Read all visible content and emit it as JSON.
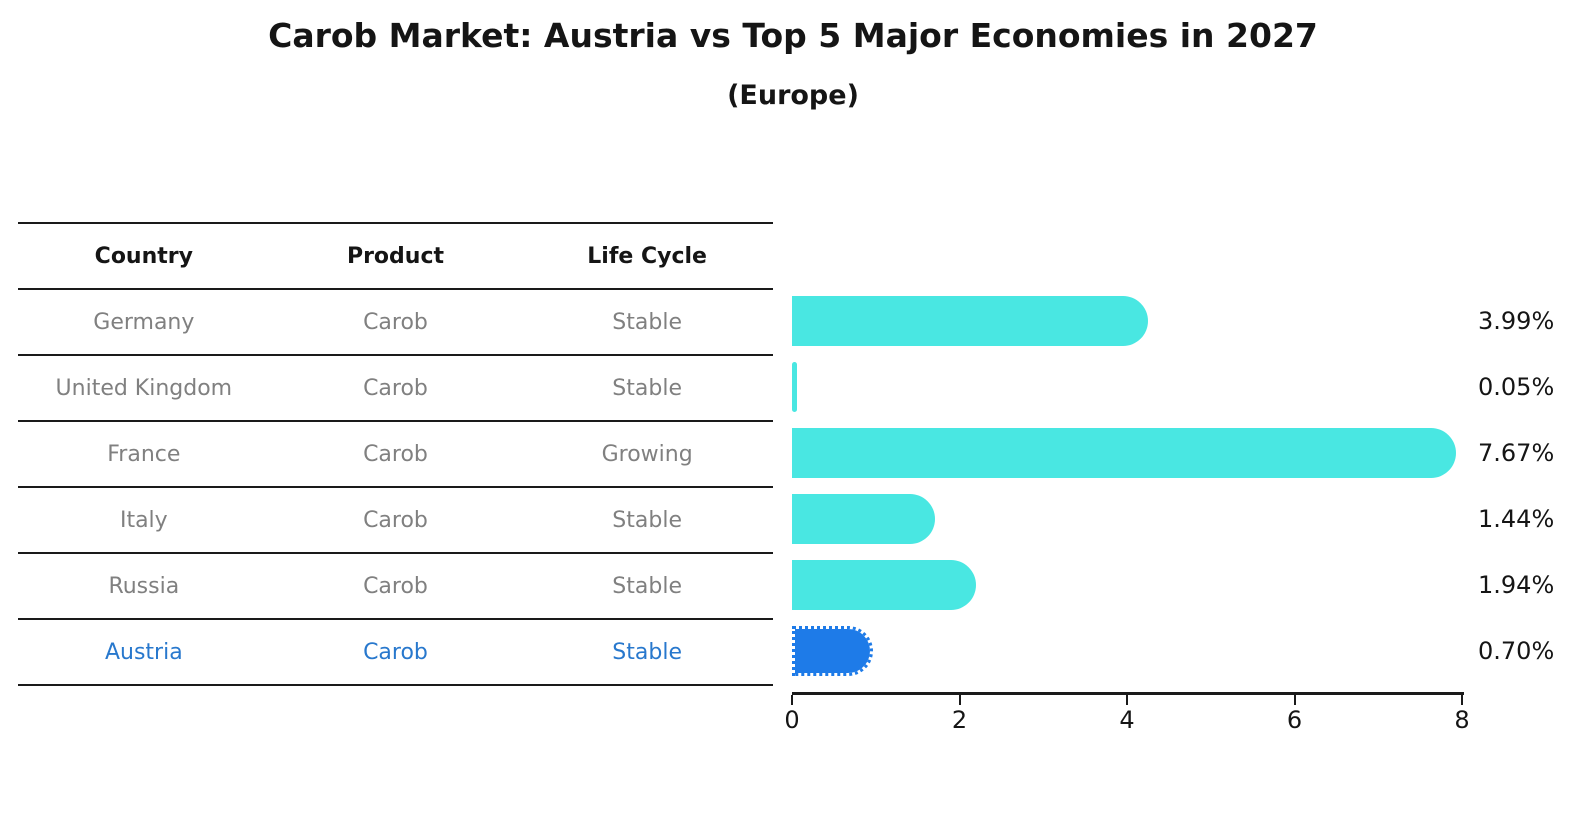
{
  "title": "Carob Market: Austria vs Top 5 Major Economies in 2027",
  "subtitle": "(Europe)",
  "table": {
    "headers": [
      "Country",
      "Product",
      "Life Cycle"
    ],
    "rows": [
      [
        "Germany",
        "Carob",
        "Stable"
      ],
      [
        "United Kingdom",
        "Carob",
        "Stable"
      ],
      [
        "France",
        "Carob",
        "Growing"
      ],
      [
        "Italy",
        "Carob",
        "Stable"
      ],
      [
        "Russia",
        "Carob",
        "Stable"
      ],
      [
        "Austria",
        "Carob",
        "Stable"
      ]
    ],
    "highlight_row_index": 5
  },
  "chart_data": {
    "type": "bar",
    "orientation": "horizontal",
    "categories": [
      "Germany",
      "United Kingdom",
      "France",
      "Italy",
      "Russia",
      "Austria"
    ],
    "values": [
      3.99,
      0.05,
      7.67,
      1.44,
      1.94,
      0.7
    ],
    "value_labels": [
      "3.99%",
      "0.05%",
      "7.67%",
      "1.44%",
      "1.94%",
      "0.70%"
    ],
    "title": "Carob Market: Austria vs Top 5 Major Economies in 2027",
    "subtitle": "(Europe)",
    "xlabel": "",
    "ylabel": "",
    "xlim": [
      0,
      8
    ],
    "x_ticks": [
      "0",
      "2",
      "4",
      "6",
      "8"
    ],
    "grid": false,
    "legend": false,
    "highlight_category": "Austria",
    "highlight_style": "dotted-edge"
  },
  "colors": {
    "bar": "#49E7E2",
    "highlight_bar": "#1E7BE8",
    "highlight_text": "#2878CD",
    "table_text": "#808080",
    "heading_text": "#151515",
    "line": "#1a1a1a",
    "background": "#ffffff"
  }
}
